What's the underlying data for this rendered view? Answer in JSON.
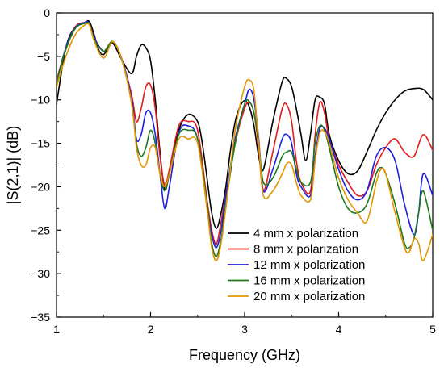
{
  "chart_data": {
    "type": "line",
    "title": "",
    "xlabel": "Frequency (GHz)",
    "ylabel": "|S(2,1)| (dB)",
    "xlim": [
      1,
      5
    ],
    "ylim": [
      -35,
      0
    ],
    "xticks": [
      1,
      2,
      3,
      4,
      5
    ],
    "yticks": [
      0,
      -5,
      -10,
      -15,
      -20,
      -25,
      -30,
      -35
    ],
    "grid": false,
    "legend_position": "bottom-right",
    "series": [
      {
        "name": "4 mm x polarization",
        "color": "#000000",
        "x": [
          1.0,
          1.1,
          1.2,
          1.3,
          1.35,
          1.4,
          1.45,
          1.5,
          1.55,
          1.6,
          1.7,
          1.8,
          1.85,
          1.9,
          1.95,
          2.0,
          2.05,
          2.1,
          2.15,
          2.2,
          2.3,
          2.4,
          2.5,
          2.55,
          2.6,
          2.65,
          2.7,
          2.75,
          2.8,
          2.85,
          2.9,
          2.95,
          3.0,
          3.05,
          3.1,
          3.15,
          3.2,
          3.3,
          3.4,
          3.45,
          3.5,
          3.55,
          3.6,
          3.65,
          3.7,
          3.75,
          3.8,
          3.85,
          3.9,
          4.0,
          4.1,
          4.2,
          4.3,
          4.4,
          4.5,
          4.6,
          4.7,
          4.8,
          4.9,
          5.0
        ],
        "y": [
          -10.5,
          -4.0,
          -1.6,
          -1.1,
          -1.0,
          -2.5,
          -4.3,
          -4.8,
          -4.0,
          -3.5,
          -5.5,
          -7.0,
          -5.0,
          -3.7,
          -4.0,
          -5.5,
          -10.0,
          -16.0,
          -20.3,
          -18.5,
          -13.5,
          -11.7,
          -12.5,
          -15.0,
          -19.0,
          -23.0,
          -24.8,
          -23.0,
          -20.0,
          -15.8,
          -12.5,
          -10.8,
          -10.1,
          -10.8,
          -13.0,
          -16.5,
          -18.0,
          -12.5,
          -7.9,
          -7.6,
          -8.5,
          -11.0,
          -14.0,
          -17.0,
          -14.0,
          -10.0,
          -9.7,
          -10.5,
          -14.0,
          -17.0,
          -18.5,
          -18.2,
          -16.0,
          -13.5,
          -11.5,
          -10.0,
          -9.0,
          -8.7,
          -8.8,
          -10.0
        ]
      },
      {
        "name": "8 mm x polarization",
        "color": "#e31a1c",
        "x": [
          1.0,
          1.1,
          1.2,
          1.3,
          1.35,
          1.4,
          1.5,
          1.6,
          1.7,
          1.8,
          1.85,
          1.9,
          1.95,
          2.0,
          2.05,
          2.1,
          2.15,
          2.2,
          2.3,
          2.4,
          2.5,
          2.6,
          2.65,
          2.7,
          2.75,
          2.8,
          2.9,
          3.0,
          3.05,
          3.1,
          3.15,
          3.2,
          3.3,
          3.4,
          3.45,
          3.5,
          3.55,
          3.6,
          3.7,
          3.75,
          3.8,
          3.85,
          3.9,
          4.0,
          4.1,
          4.2,
          4.3,
          4.4,
          4.5,
          4.6,
          4.7,
          4.8,
          4.9,
          5.0
        ],
        "y": [
          -7.8,
          -4.0,
          -1.6,
          -1.1,
          -1.2,
          -2.8,
          -4.4,
          -3.3,
          -5.5,
          -9.5,
          -12.5,
          -11.0,
          -8.5,
          -8.3,
          -11.0,
          -16.5,
          -19.8,
          -18.0,
          -13.0,
          -12.5,
          -13.5,
          -21.5,
          -25.0,
          -26.6,
          -24.0,
          -21.0,
          -15.0,
          -11.0,
          -10.3,
          -11.5,
          -15.5,
          -20.5,
          -16.0,
          -11.0,
          -10.6,
          -12.5,
          -17.0,
          -19.5,
          -20.5,
          -14.0,
          -10.3,
          -11.5,
          -14.5,
          -17.5,
          -19.5,
          -21.0,
          -20.5,
          -17.5,
          -15.5,
          -14.5,
          -16.0,
          -16.5,
          -14.0,
          -15.8
        ]
      },
      {
        "name": "12 mm x polarization",
        "color": "#1f1fe0",
        "x": [
          1.0,
          1.1,
          1.2,
          1.3,
          1.35,
          1.4,
          1.5,
          1.6,
          1.7,
          1.8,
          1.85,
          1.9,
          1.95,
          2.0,
          2.05,
          2.1,
          2.15,
          2.2,
          2.3,
          2.4,
          2.5,
          2.6,
          2.65,
          2.7,
          2.75,
          2.8,
          2.9,
          3.0,
          3.05,
          3.1,
          3.15,
          3.2,
          3.3,
          3.4,
          3.45,
          3.5,
          3.55,
          3.6,
          3.7,
          3.75,
          3.8,
          3.85,
          3.9,
          4.0,
          4.1,
          4.2,
          4.3,
          4.4,
          4.5,
          4.6,
          4.7,
          4.8,
          4.85,
          4.9,
          5.0
        ],
        "y": [
          -8.0,
          -4.0,
          -1.7,
          -1.1,
          -1.2,
          -2.8,
          -4.4,
          -3.3,
          -5.5,
          -10.0,
          -14.5,
          -14.0,
          -11.5,
          -11.5,
          -14.0,
          -18.5,
          -22.5,
          -20.0,
          -13.8,
          -13.0,
          -14.5,
          -22.0,
          -25.5,
          -27.0,
          -25.0,
          -21.0,
          -14.5,
          -10.5,
          -8.8,
          -10.0,
          -14.5,
          -20.5,
          -18.0,
          -14.5,
          -14.0,
          -15.0,
          -18.5,
          -20.0,
          -21.0,
          -16.5,
          -13.3,
          -13.3,
          -14.5,
          -18.0,
          -20.5,
          -21.5,
          -20.5,
          -16.5,
          -15.5,
          -17.0,
          -22.0,
          -25.5,
          -23.0,
          -18.5,
          -21.0
        ]
      },
      {
        "name": "16 mm x polarization",
        "color": "#1a7a1a",
        "x": [
          1.0,
          1.1,
          1.2,
          1.3,
          1.35,
          1.4,
          1.5,
          1.6,
          1.7,
          1.8,
          1.85,
          1.9,
          1.95,
          2.0,
          2.05,
          2.1,
          2.15,
          2.2,
          2.3,
          2.4,
          2.5,
          2.6,
          2.65,
          2.7,
          2.75,
          2.8,
          2.9,
          3.0,
          3.05,
          3.1,
          3.15,
          3.2,
          3.3,
          3.4,
          3.45,
          3.5,
          3.55,
          3.6,
          3.7,
          3.75,
          3.8,
          3.85,
          3.9,
          4.0,
          4.1,
          4.2,
          4.3,
          4.4,
          4.45,
          4.5,
          4.6,
          4.7,
          4.75,
          4.8,
          4.85,
          4.9,
          5.0
        ],
        "y": [
          -8.0,
          -4.2,
          -1.8,
          -1.2,
          -1.3,
          -3.0,
          -4.4,
          -3.3,
          -5.6,
          -10.5,
          -15.0,
          -16.5,
          -15.5,
          -13.5,
          -15.0,
          -18.5,
          -20.5,
          -18.5,
          -14.0,
          -13.5,
          -14.5,
          -22.0,
          -26.5,
          -28.0,
          -26.0,
          -22.0,
          -15.0,
          -10.5,
          -10.2,
          -11.5,
          -15.0,
          -19.5,
          -19.0,
          -16.5,
          -16.0,
          -16.0,
          -18.0,
          -19.5,
          -19.5,
          -15.0,
          -13.0,
          -13.5,
          -15.5,
          -20.0,
          -22.5,
          -23.0,
          -22.0,
          -18.5,
          -17.8,
          -18.5,
          -22.0,
          -26.5,
          -27.0,
          -26.0,
          -23.0,
          -20.5,
          -25.0
        ]
      },
      {
        "name": "20 mm x polarization",
        "color": "#e69500",
        "x": [
          1.0,
          1.1,
          1.2,
          1.3,
          1.35,
          1.4,
          1.5,
          1.6,
          1.7,
          1.8,
          1.85,
          1.9,
          1.95,
          2.0,
          2.05,
          2.1,
          2.15,
          2.2,
          2.3,
          2.4,
          2.5,
          2.6,
          2.65,
          2.7,
          2.75,
          2.8,
          2.9,
          3.0,
          3.05,
          3.1,
          3.15,
          3.2,
          3.3,
          3.4,
          3.45,
          3.5,
          3.55,
          3.6,
          3.7,
          3.75,
          3.8,
          3.85,
          3.9,
          4.0,
          4.1,
          4.2,
          4.3,
          4.4,
          4.45,
          4.5,
          4.6,
          4.7,
          4.75,
          4.8,
          4.85,
          4.9,
          5.0
        ],
        "y": [
          -8.5,
          -5.0,
          -2.5,
          -1.4,
          -1.4,
          -3.2,
          -5.2,
          -3.3,
          -5.6,
          -10.5,
          -15.5,
          -17.5,
          -17.5,
          -15.5,
          -15.5,
          -18.5,
          -20.0,
          -18.5,
          -14.5,
          -14.5,
          -15.0,
          -22.5,
          -27.0,
          -28.5,
          -26.5,
          -22.5,
          -13.5,
          -8.5,
          -7.7,
          -9.0,
          -15.0,
          -21.0,
          -20.5,
          -18.5,
          -17.3,
          -17.5,
          -19.5,
          -21.0,
          -21.5,
          -17.0,
          -13.8,
          -13.7,
          -15.0,
          -19.0,
          -21.5,
          -23.0,
          -24.0,
          -19.5,
          -18.0,
          -18.5,
          -23.0,
          -27.0,
          -27.5,
          -26.0,
          -26.5,
          -28.5,
          -25.5
        ]
      }
    ]
  }
}
